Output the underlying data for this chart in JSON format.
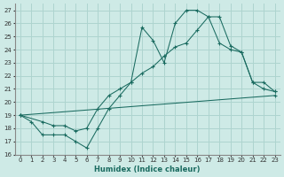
{
  "xlabel": "Humidex (Indice chaleur)",
  "bg_color": "#ceeae6",
  "grid_color": "#aed4cf",
  "line_color": "#1a6b60",
  "xlim": [
    -0.5,
    23.5
  ],
  "ylim": [
    16,
    27.5
  ],
  "xticks": [
    0,
    1,
    2,
    3,
    4,
    5,
    6,
    7,
    8,
    9,
    10,
    11,
    12,
    13,
    14,
    15,
    16,
    17,
    18,
    19,
    20,
    21,
    22,
    23
  ],
  "yticks": [
    16,
    17,
    18,
    19,
    20,
    21,
    22,
    23,
    24,
    25,
    26,
    27
  ],
  "line1_x": [
    0,
    1,
    2,
    3,
    4,
    5,
    6,
    7,
    8,
    9,
    10,
    11,
    12,
    13,
    14,
    15,
    16,
    17,
    18,
    19,
    20,
    21,
    22,
    23
  ],
  "line1_y": [
    19.0,
    18.5,
    17.5,
    17.5,
    17.5,
    17.0,
    16.5,
    18.0,
    19.5,
    20.5,
    21.5,
    25.7,
    24.7,
    23.0,
    26.0,
    27.0,
    27.0,
    26.5,
    24.5,
    24.0,
    23.8,
    21.5,
    21.0,
    20.8
  ],
  "line2_x": [
    0,
    2,
    3,
    4,
    5,
    6,
    7,
    8,
    9,
    10,
    11,
    12,
    13,
    14,
    15,
    16,
    17,
    18,
    19,
    20,
    21,
    22,
    23
  ],
  "line2_y": [
    19.0,
    18.5,
    18.2,
    18.2,
    17.8,
    18.0,
    19.5,
    20.5,
    21.0,
    21.5,
    22.2,
    22.7,
    23.5,
    24.2,
    24.5,
    25.5,
    26.5,
    26.5,
    24.3,
    23.8,
    21.5,
    21.5,
    20.8
  ],
  "line3_x": [
    0,
    23
  ],
  "line3_y": [
    19.0,
    20.5
  ]
}
